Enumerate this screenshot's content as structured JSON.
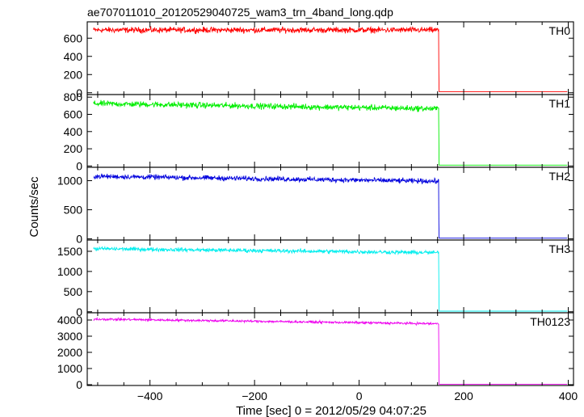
{
  "chart_data": {
    "type": "line",
    "title": "ae707011010_20120529040725_wam3_trn_4band_long.qdp",
    "xlabel": "Time [sec] 0 = 2012/05/29 04:07:25",
    "ylabel": "Counts/sec",
    "xlim": [
      -520,
      410
    ],
    "x_ticks": [
      -400,
      -200,
      0,
      200,
      400
    ],
    "x_tick_labels": [
      "−400",
      "−200",
      "0",
      "200",
      "400"
    ],
    "x_data_range": [
      -508,
      400
    ],
    "drop_time": 152,
    "grid": false,
    "panels": [
      {
        "label": "TH0",
        "color": "#ff0000",
        "ylim": [
          -20,
          780
        ],
        "y_ticks": [
          0,
          200,
          400,
          600
        ],
        "y_tick_labels": [
          "0",
          "200",
          "400",
          "600"
        ],
        "level_start": 690,
        "level_end": 690,
        "noise": 22,
        "after_drop": 12,
        "transient": 210
      },
      {
        "label": "TH1",
        "color": "#00ee00",
        "ylim": [
          -15,
          830
        ],
        "y_ticks": [
          0,
          200,
          400,
          600,
          800
        ],
        "y_tick_labels": [
          "0",
          "200",
          "400",
          "600",
          "800"
        ],
        "level_start": 725,
        "level_end": 665,
        "noise": 24,
        "after_drop": 10,
        "transient": 0
      },
      {
        "label": "TH2",
        "color": "#0000dd",
        "ylim": [
          -20,
          1230
        ],
        "y_ticks": [
          0,
          500,
          1000
        ],
        "y_tick_labels": [
          "0",
          "500",
          "1000"
        ],
        "level_start": 1075,
        "level_end": 990,
        "noise": 30,
        "after_drop": 12,
        "transient": 270
      },
      {
        "label": "TH3",
        "color": "#00eeee",
        "ylim": [
          -25,
          1780
        ],
        "y_ticks": [
          0,
          500,
          1000,
          1500
        ],
        "y_tick_labels": [
          "0",
          "500",
          "1000",
          "1500"
        ],
        "level_start": 1565,
        "level_end": 1465,
        "noise": 35,
        "after_drop": 15,
        "transient": 0
      },
      {
        "label": "TH0123",
        "color": "#ee00ee",
        "ylim": [
          -50,
          4450
        ],
        "y_ticks": [
          0,
          1000,
          2000,
          3000,
          4000
        ],
        "y_tick_labels": [
          "0",
          "1000",
          "2000",
          "3000",
          "4000"
        ],
        "level_start": 4060,
        "level_end": 3770,
        "noise": 50,
        "after_drop": 30,
        "transient": 0
      }
    ]
  }
}
